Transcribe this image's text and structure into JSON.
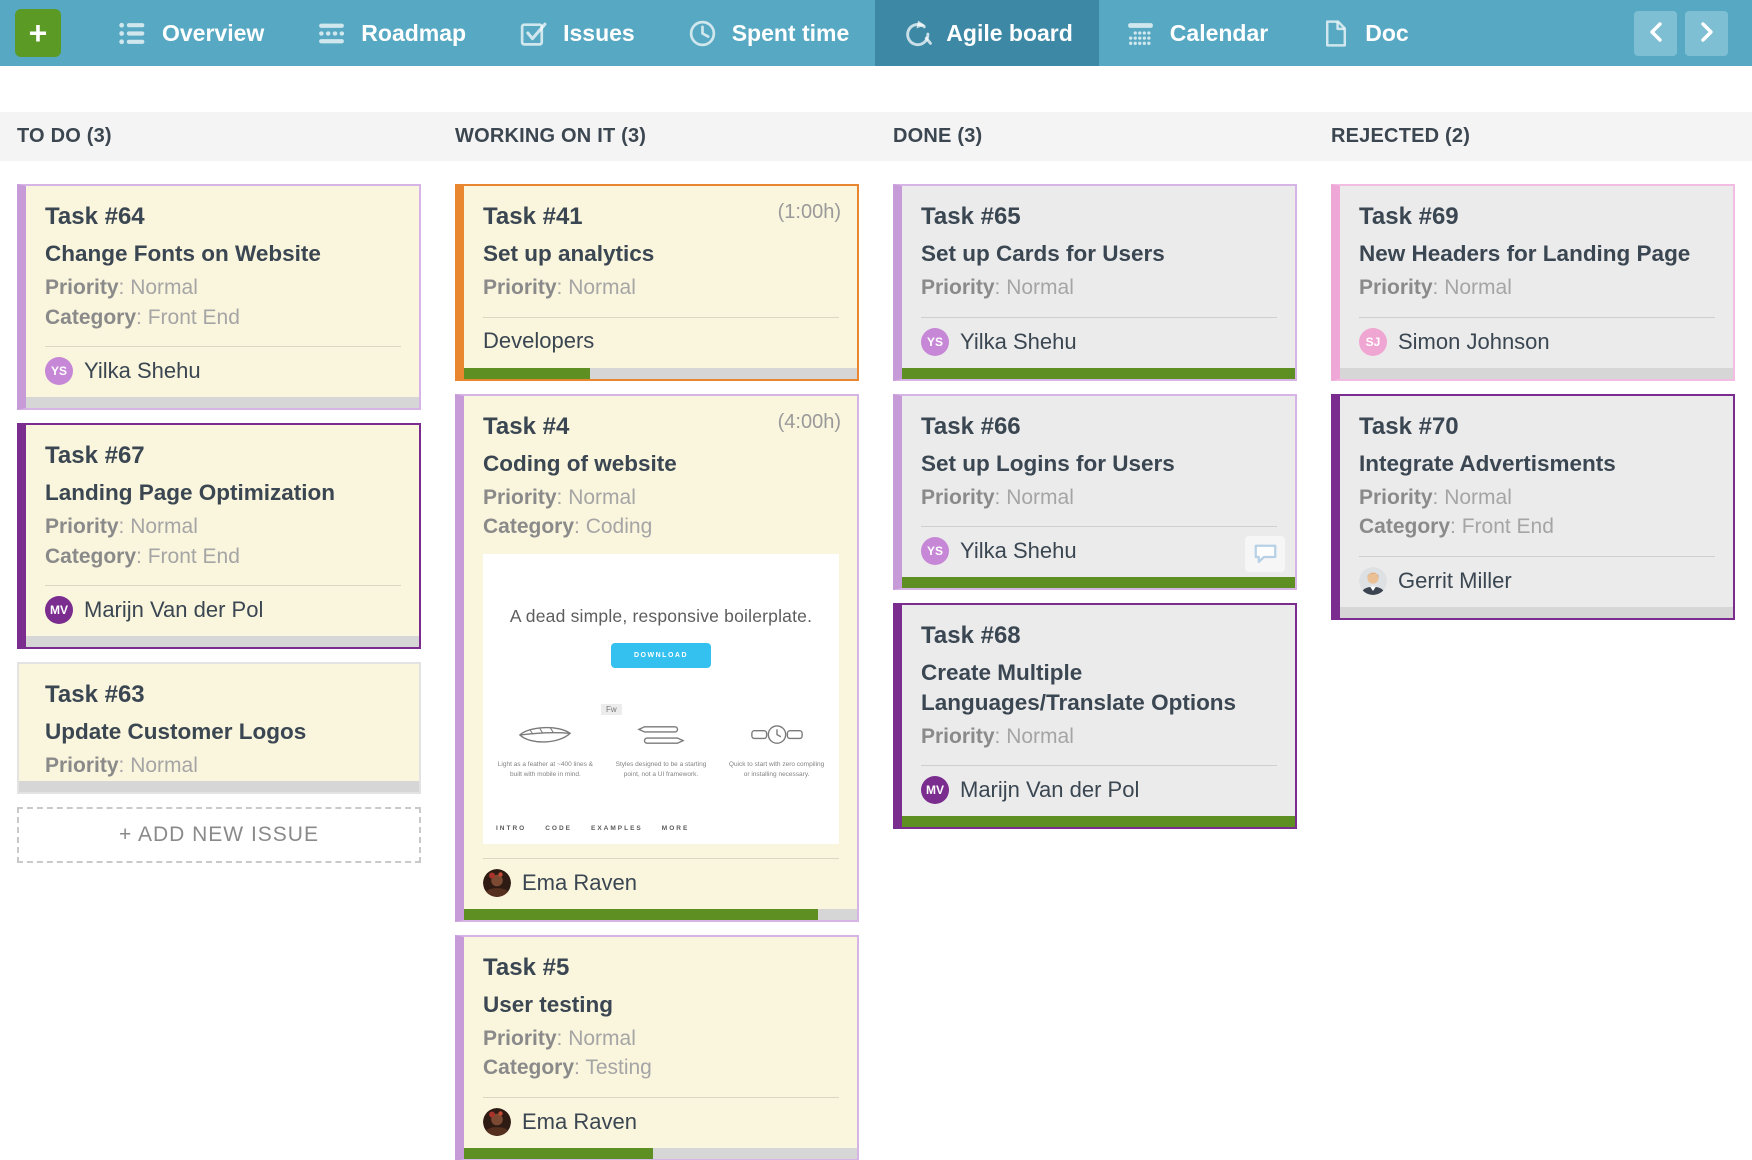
{
  "nav": {
    "add_label": "+",
    "tabs": [
      {
        "label": "Overview",
        "icon": "list-icon",
        "active": false
      },
      {
        "label": "Roadmap",
        "icon": "roadmap-icon",
        "active": false
      },
      {
        "label": "Issues",
        "icon": "checkbox-icon",
        "active": false
      },
      {
        "label": "Spent time",
        "icon": "clock-icon",
        "active": false
      },
      {
        "label": "Agile board",
        "icon": "sprint-icon",
        "active": true
      },
      {
        "label": "Calendar",
        "icon": "calendar-icon",
        "active": false
      },
      {
        "label": "Doc",
        "icon": "doc-icon",
        "active": false
      }
    ]
  },
  "labels": {
    "priority": "Priority",
    "category": "Category"
  },
  "board": {
    "columns": [
      {
        "title": "TO DO (3)",
        "add_label": "+ ADD NEW ISSUE",
        "cards": [
          {
            "id": "Task #64",
            "title": "Change Fonts on Website",
            "priority": "Normal",
            "category": "Front End",
            "assignee": {
              "initials": "YS",
              "name": "Yilka Shehu",
              "color": "#c687d6"
            },
            "accent": "light-purple",
            "bg": "cream",
            "progress": 0
          },
          {
            "id": "Task #67",
            "title": "Landing Page Optimization",
            "priority": "Normal",
            "category": "Front End",
            "assignee": {
              "initials": "MV",
              "name": "Marijn Van der Pol",
              "color": "#7b2c8f"
            },
            "accent": "dark-purple",
            "bg": "cream",
            "progress": 0
          },
          {
            "id": "Task #63",
            "title": "Update Customer Logos",
            "priority": "Normal",
            "accent": "none",
            "bg": "cream",
            "progress": 0
          }
        ]
      },
      {
        "title": "WORKING ON IT (3)",
        "cards": [
          {
            "id": "Task #41",
            "time": "(1:00h)",
            "title": "Set up analytics",
            "priority": "Normal",
            "group": "Developers",
            "accent": "orange",
            "bg": "cream",
            "progress": 32
          },
          {
            "id": "Task #4",
            "time": "(4:00h)",
            "title": "Coding of website",
            "priority": "Normal",
            "category": "Coding",
            "assignee": {
              "photo": "ema-photo",
              "name": "Ema Raven"
            },
            "attachment": {
              "heading": "A dead simple, responsive boilerplate.",
              "button_label": "DOWNLOAD",
              "badge": "Fw",
              "features": [
                {
                  "icon": "feather-icon",
                  "caption": "Light as a feather at ~400 lines & built with mobile in mind."
                },
                {
                  "icon": "pen-icon",
                  "caption": "Styles designed to be a starting point, not a UI framework."
                },
                {
                  "icon": "watch-icon",
                  "caption": "Quick to start with zero compiling or installing necessary."
                }
              ],
              "footer_links": [
                "INTRO",
                "CODE",
                "EXAMPLES",
                "MORE"
              ]
            },
            "accent": "light-purple",
            "bg": "cream",
            "progress": 90
          },
          {
            "id": "Task #5",
            "title": "User testing",
            "priority": "Normal",
            "category": "Testing",
            "assignee": {
              "photo": "ema-photo",
              "name": "Ema Raven"
            },
            "accent": "light-purple",
            "bg": "cream",
            "progress": 48
          }
        ]
      },
      {
        "title": "DONE (3)",
        "cards": [
          {
            "id": "Task #65",
            "title": "Set up Cards for Users",
            "priority": "Normal",
            "assignee": {
              "initials": "YS",
              "name": "Yilka Shehu",
              "color": "#c687d6"
            },
            "accent": "light-purple",
            "bg": "gray",
            "progress": 100
          },
          {
            "id": "Task #66",
            "title": "Set up Logins for Users",
            "priority": "Normal",
            "assignee": {
              "initials": "YS",
              "name": "Yilka Shehu",
              "color": "#c687d6"
            },
            "accent": "light-purple",
            "bg": "gray",
            "progress": 100,
            "comment_badge": true
          },
          {
            "id": "Task #68",
            "title": "Create Multiple Languages/Translate Options",
            "priority": "Normal",
            "assignee": {
              "initials": "MV",
              "name": "Marijn Van der Pol",
              "color": "#7b2c8f"
            },
            "accent": "dark-purple",
            "bg": "gray",
            "progress": 100
          }
        ]
      },
      {
        "title": "REJECTED (2)",
        "cards": [
          {
            "id": "Task #69",
            "title": "New Headers for Landing Page",
            "priority": "Normal",
            "assignee": {
              "initials": "SJ",
              "name": "Simon Johnson",
              "color": "#f0a6d2"
            },
            "accent": "pink",
            "bg": "gray",
            "progress": 0
          },
          {
            "id": "Task #70",
            "title": "Integrate Advertisments",
            "priority": "Normal",
            "category": "Front End",
            "assignee": {
              "photo": "gerrit-photo",
              "name": "Gerrit Miller"
            },
            "accent": "dark-purple",
            "bg": "gray",
            "progress": 0
          }
        ]
      }
    ]
  },
  "colors": {
    "nav_teal": "#57a8c2",
    "nav_active_teal": "#3d89a5",
    "nav_arrow_teal": "#7fbfd3",
    "add_green": "#5b9b25",
    "progress_green": "#5d8f23",
    "progress_track": "#d6d6d6",
    "card_cream": "#faf5dd",
    "card_gray": "#ebebeb",
    "accent_light_purple": "#c79ad8",
    "accent_dark_purple": "#7b2c8f",
    "accent_orange": "#e8872f",
    "accent_pink": "#efa7d8",
    "header_strip": "#f4f4f4",
    "text_dark": "#3a4651",
    "text_muted": "#8a8a8a",
    "attachment_button_blue": "#35c1ef"
  }
}
